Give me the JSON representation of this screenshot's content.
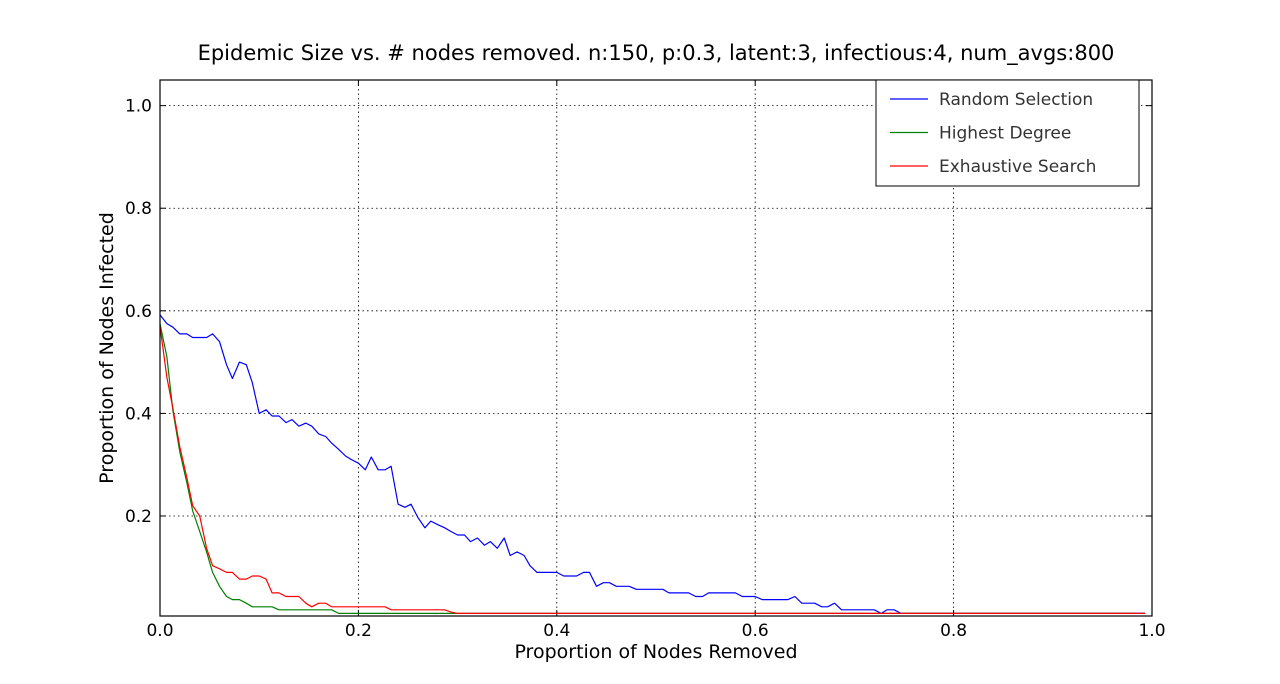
{
  "chart_data": {
    "type": "line",
    "title": "Epidemic Size vs. # nodes removed. n:150, p:0.3, latent:3, infectious:4, num_avgs:800",
    "xlabel": "Proportion of Nodes Removed",
    "ylabel": "Proportion of Nodes Infected",
    "xlim": [
      0.0,
      1.0
    ],
    "ylim": [
      0.005,
      1.05
    ],
    "xticks": [
      0.0,
      0.2,
      0.4,
      0.6,
      0.8,
      1.0
    ],
    "xtick_labels": [
      "0.0",
      "0.2",
      "0.4",
      "0.6",
      "0.8",
      "1.0"
    ],
    "yticks": [
      0.2,
      0.4,
      0.6,
      0.8,
      1.0
    ],
    "ytick_labels": [
      "0.2",
      "0.4",
      "0.6",
      "0.8",
      "1.0"
    ],
    "grid": true,
    "legend_position": "top-right",
    "series": [
      {
        "name": "Random Selection",
        "color": "#0000ff",
        "x": [
          0.0,
          0.007,
          0.013,
          0.02,
          0.027,
          0.033,
          0.04,
          0.047,
          0.053,
          0.06,
          0.067,
          0.073,
          0.08,
          0.087,
          0.093,
          0.1,
          0.107,
          0.113,
          0.12,
          0.127,
          0.133,
          0.14,
          0.147,
          0.153,
          0.16,
          0.167,
          0.173,
          0.18,
          0.187,
          0.193,
          0.2,
          0.207,
          0.213,
          0.22,
          0.227,
          0.233,
          0.24,
          0.247,
          0.253,
          0.26,
          0.267,
          0.273,
          0.28,
          0.287,
          0.293,
          0.3,
          0.307,
          0.313,
          0.32,
          0.327,
          0.333,
          0.34,
          0.347,
          0.353,
          0.36,
          0.367,
          0.373,
          0.38,
          0.387,
          0.393,
          0.4,
          0.407,
          0.413,
          0.42,
          0.427,
          0.433,
          0.44,
          0.447,
          0.453,
          0.46,
          0.467,
          0.473,
          0.48,
          0.487,
          0.493,
          0.5,
          0.507,
          0.513,
          0.52,
          0.527,
          0.533,
          0.54,
          0.547,
          0.553,
          0.56,
          0.567,
          0.573,
          0.58,
          0.587,
          0.593,
          0.6,
          0.607,
          0.613,
          0.62,
          0.627,
          0.633,
          0.64,
          0.647,
          0.653,
          0.66,
          0.667,
          0.673,
          0.68,
          0.687,
          0.693,
          0.7,
          0.707,
          0.713,
          0.72,
          0.727,
          0.733,
          0.74,
          0.747,
          0.753,
          0.76,
          0.767,
          0.773,
          0.78,
          0.787,
          0.793,
          0.8,
          0.807,
          0.813,
          0.82,
          0.827,
          0.833,
          0.84,
          0.847,
          0.853,
          0.86,
          0.867,
          0.873,
          0.88,
          0.887,
          0.893,
          0.9,
          0.907,
          0.913,
          0.92,
          0.927,
          0.933,
          0.94,
          0.947,
          0.953,
          0.96,
          0.967,
          0.973,
          0.98,
          0.987,
          0.993
        ],
        "values": [
          0.592,
          0.575,
          0.568,
          0.555,
          0.555,
          0.548,
          0.548,
          0.548,
          0.555,
          0.54,
          0.495,
          0.468,
          0.5,
          0.495,
          0.46,
          0.4,
          0.407,
          0.395,
          0.395,
          0.382,
          0.388,
          0.375,
          0.381,
          0.375,
          0.36,
          0.355,
          0.342,
          0.33,
          0.317,
          0.31,
          0.303,
          0.29,
          0.315,
          0.29,
          0.29,
          0.297,
          0.223,
          0.217,
          0.223,
          0.197,
          0.177,
          0.19,
          0.183,
          0.177,
          0.17,
          0.163,
          0.163,
          0.15,
          0.157,
          0.143,
          0.15,
          0.137,
          0.157,
          0.123,
          0.13,
          0.123,
          0.103,
          0.09,
          0.09,
          0.09,
          0.09,
          0.083,
          0.083,
          0.083,
          0.09,
          0.09,
          0.063,
          0.07,
          0.07,
          0.063,
          0.063,
          0.063,
          0.057,
          0.057,
          0.057,
          0.057,
          0.057,
          0.05,
          0.05,
          0.05,
          0.05,
          0.043,
          0.043,
          0.05,
          0.05,
          0.05,
          0.05,
          0.05,
          0.043,
          0.043,
          0.043,
          0.037,
          0.037,
          0.037,
          0.037,
          0.037,
          0.043,
          0.03,
          0.03,
          0.03,
          0.023,
          0.023,
          0.03,
          0.017,
          0.017,
          0.017,
          0.017,
          0.017,
          0.017,
          0.01,
          0.017,
          0.017,
          0.01,
          0.01,
          0.01,
          0.01,
          0.01,
          0.01,
          0.01,
          0.01,
          0.01,
          0.01,
          0.01,
          0.01,
          0.01,
          0.01,
          0.01,
          0.01,
          0.01,
          0.01,
          0.01,
          0.01,
          0.01,
          0.01,
          0.01,
          0.01,
          0.01,
          0.01,
          0.01,
          0.01,
          0.01,
          0.01,
          0.01,
          0.01,
          0.01,
          0.01,
          0.01,
          0.01,
          0.01,
          0.01
        ]
      },
      {
        "name": "Highest Degree",
        "color": "#008000",
        "x": [
          0.0,
          0.007,
          0.013,
          0.02,
          0.027,
          0.033,
          0.04,
          0.047,
          0.053,
          0.06,
          0.067,
          0.073,
          0.08,
          0.087,
          0.093,
          0.1,
          0.107,
          0.113,
          0.12,
          0.127,
          0.133,
          0.14,
          0.147,
          0.153,
          0.16,
          0.167,
          0.173,
          0.18,
          0.187,
          0.193,
          0.2,
          0.3,
          0.4,
          0.5,
          0.6,
          0.7,
          0.8,
          0.9,
          0.993
        ],
        "values": [
          0.575,
          0.51,
          0.405,
          0.325,
          0.265,
          0.21,
          0.17,
          0.13,
          0.09,
          0.063,
          0.043,
          0.037,
          0.037,
          0.03,
          0.023,
          0.023,
          0.023,
          0.023,
          0.017,
          0.017,
          0.017,
          0.017,
          0.017,
          0.017,
          0.017,
          0.017,
          0.017,
          0.01,
          0.01,
          0.01,
          0.01,
          0.01,
          0.01,
          0.01,
          0.01,
          0.01,
          0.01,
          0.01,
          0.01
        ]
      },
      {
        "name": "Exhaustive Search",
        "color": "#ff0000",
        "x": [
          0.0,
          0.007,
          0.013,
          0.02,
          0.027,
          0.033,
          0.04,
          0.047,
          0.053,
          0.06,
          0.067,
          0.073,
          0.08,
          0.087,
          0.093,
          0.1,
          0.107,
          0.113,
          0.12,
          0.127,
          0.133,
          0.14,
          0.147,
          0.153,
          0.16,
          0.167,
          0.173,
          0.18,
          0.187,
          0.193,
          0.2,
          0.207,
          0.213,
          0.22,
          0.227,
          0.233,
          0.24,
          0.247,
          0.253,
          0.26,
          0.267,
          0.273,
          0.28,
          0.287,
          0.293,
          0.3,
          0.4,
          0.5,
          0.6,
          0.7,
          0.8,
          0.9,
          0.993
        ],
        "values": [
          0.57,
          0.47,
          0.41,
          0.335,
          0.275,
          0.22,
          0.2,
          0.137,
          0.103,
          0.097,
          0.09,
          0.09,
          0.077,
          0.077,
          0.083,
          0.083,
          0.077,
          0.05,
          0.05,
          0.043,
          0.043,
          0.043,
          0.03,
          0.023,
          0.03,
          0.03,
          0.023,
          0.023,
          0.023,
          0.023,
          0.023,
          0.023,
          0.023,
          0.023,
          0.023,
          0.017,
          0.017,
          0.017,
          0.017,
          0.017,
          0.017,
          0.017,
          0.017,
          0.017,
          0.013,
          0.01,
          0.01,
          0.01,
          0.01,
          0.01,
          0.01,
          0.01,
          0.01
        ]
      }
    ]
  }
}
